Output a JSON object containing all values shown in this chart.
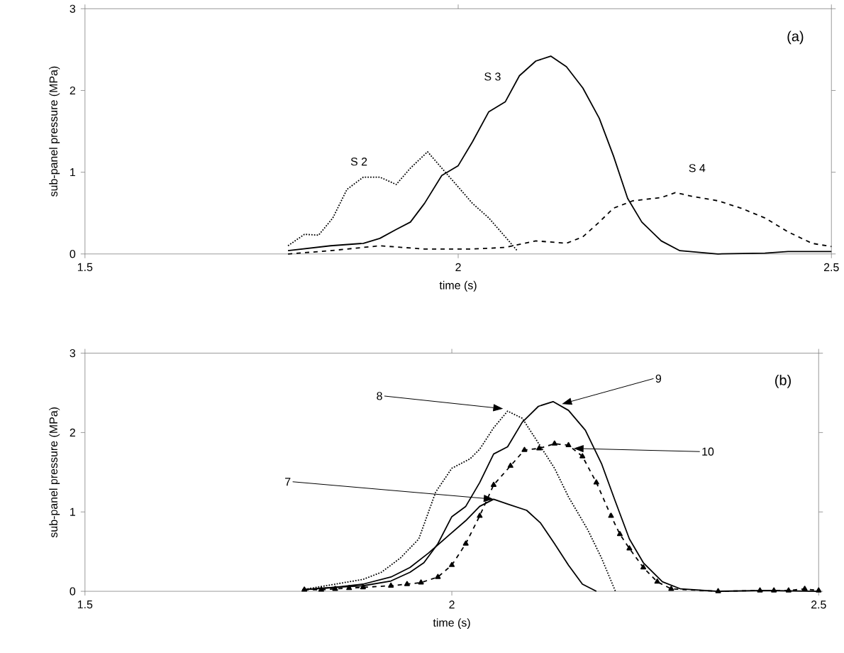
{
  "chart_data": [
    {
      "type": "line",
      "xlabel": "time (s)",
      "ylabel": "sub-panel pressure (MPa)",
      "xlim": [
        1.5,
        2.5
      ],
      "ylim": [
        0,
        3
      ],
      "xticks": [
        {
          "value": 1.5,
          "label": "1.5"
        },
        {
          "value": 2,
          "label": "2"
        },
        {
          "value": 2.5,
          "label": "2.5"
        }
      ],
      "yticks": [
        0,
        1,
        2,
        3
      ],
      "grid": false,
      "annotations": [
        "(a)"
      ],
      "series": [
        {
          "name": "S 2",
          "color": "#000000",
          "line_style": "dotted",
          "x": [
            1.772,
            1.794,
            1.813,
            1.832,
            1.851,
            1.873,
            1.895,
            1.917,
            1.936,
            1.959,
            1.978,
            2.0,
            2.019,
            2.041,
            2.063,
            2.079
          ],
          "values": [
            0.1,
            0.24,
            0.23,
            0.44,
            0.79,
            0.94,
            0.94,
            0.85,
            1.05,
            1.25,
            1.05,
            0.82,
            0.62,
            0.44,
            0.21,
            0.04
          ]
        },
        {
          "name": "S 3",
          "color": "#000000",
          "line_style": "solid",
          "x": [
            1.772,
            1.829,
            1.873,
            1.895,
            1.917,
            1.936,
            1.955,
            1.978,
            2.0,
            2.019,
            2.041,
            2.063,
            2.082,
            2.104,
            2.124,
            2.145,
            2.167,
            2.189,
            2.208,
            2.227,
            2.246,
            2.272,
            2.297,
            2.348,
            2.411,
            2.442,
            2.5
          ],
          "values": [
            0.04,
            0.1,
            0.13,
            0.19,
            0.3,
            0.39,
            0.62,
            0.96,
            1.08,
            1.37,
            1.74,
            1.86,
            2.18,
            2.36,
            2.42,
            2.29,
            2.03,
            1.66,
            1.2,
            0.68,
            0.39,
            0.16,
            0.04,
            0,
            0.01,
            0.03,
            0.03
          ]
        },
        {
          "name": "S 4",
          "color": "#000000",
          "line_style": "dashed",
          "x": [
            1.772,
            1.829,
            1.895,
            1.955,
            2.019,
            2.063,
            2.104,
            2.145,
            2.167,
            2.189,
            2.208,
            2.234,
            2.272,
            2.291,
            2.316,
            2.348,
            2.379,
            2.411,
            2.442,
            2.474,
            2.5
          ],
          "values": [
            0,
            0.04,
            0.1,
            0.06,
            0.06,
            0.08,
            0.16,
            0.13,
            0.21,
            0.39,
            0.56,
            0.65,
            0.69,
            0.75,
            0.7,
            0.65,
            0.56,
            0.44,
            0.27,
            0.13,
            0.09
          ]
        }
      ]
    },
    {
      "type": "line",
      "xlabel": "time (s)",
      "ylabel": "sub-panel pressure (MPa)",
      "xlim": [
        1.5,
        2.5
      ],
      "ylim": [
        0,
        3
      ],
      "xticks": [
        {
          "value": 1.5,
          "label": "1.5"
        },
        {
          "value": 2,
          "label": "2"
        },
        {
          "value": 2.5,
          "label": "2.5"
        }
      ],
      "yticks": [
        0,
        1,
        2,
        3
      ],
      "grid": false,
      "annotations": [
        "(b)",
        {
          "text": "7",
          "x": 2.057,
          "y": 1.16
        },
        {
          "text": "8",
          "x": 2.07,
          "y": 2.3
        },
        {
          "text": "9",
          "x": 2.15,
          "y": 2.36
        },
        {
          "text": "10",
          "x": 2.166,
          "y": 1.8
        }
      ],
      "series": [
        {
          "color": "#000000",
          "line_style": "solid",
          "x": [
            1.796,
            1.841,
            1.879,
            1.917,
            1.943,
            1.968,
            1.994,
            2.019,
            2.038,
            2.057,
            2.076,
            2.102,
            2.121,
            2.14,
            2.159,
            2.178,
            2.197
          ],
          "values": [
            0.02,
            0.05,
            0.09,
            0.18,
            0.3,
            0.48,
            0.69,
            0.89,
            1.07,
            1.16,
            1.1,
            1.02,
            0.86,
            0.6,
            0.33,
            0.09,
            0
          ]
        },
        {
          "color": "#000000",
          "line_style": "dotted",
          "x": [
            1.796,
            1.841,
            1.879,
            1.904,
            1.93,
            1.955,
            1.978,
            2.0,
            2.025,
            2.038,
            2.057,
            2.076,
            2.096,
            2.115,
            2.14,
            2.159,
            2.185,
            2.204,
            2.223
          ],
          "values": [
            0.02,
            0.09,
            0.15,
            0.24,
            0.42,
            0.66,
            1.25,
            1.55,
            1.67,
            1.79,
            2.06,
            2.27,
            2.18,
            1.91,
            1.55,
            1.19,
            0.78,
            0.42,
            0
          ]
        },
        {
          "color": "#000000",
          "line_style": "solid",
          "x": [
            1.796,
            1.841,
            1.879,
            1.917,
            1.943,
            1.962,
            1.981,
            2.0,
            2.019,
            2.038,
            2.057,
            2.076,
            2.096,
            2.118,
            2.138,
            2.159,
            2.182,
            2.204,
            2.223,
            2.242,
            2.261,
            2.287,
            2.312,
            2.363,
            2.427,
            2.5
          ],
          "values": [
            0.02,
            0.05,
            0.07,
            0.13,
            0.24,
            0.36,
            0.6,
            0.94,
            1.07,
            1.37,
            1.73,
            1.82,
            2.13,
            2.33,
            2.39,
            2.28,
            2.03,
            1.61,
            1.13,
            0.66,
            0.36,
            0.12,
            0.03,
            0,
            0.01,
            0
          ]
        },
        {
          "color": "#000000",
          "line_style": "dashed",
          "marker": "triangle",
          "x": [
            1.799,
            1.822,
            1.841,
            1.86,
            1.879,
            1.917,
            1.939,
            1.958,
            1.981,
            2.0,
            2.019,
            2.038,
            2.057,
            2.08,
            2.099,
            2.119,
            2.14,
            2.159,
            2.178,
            2.197,
            2.217,
            2.229,
            2.242,
            2.261,
            2.28,
            2.299,
            2.363,
            2.42,
            2.439,
            2.459,
            2.481,
            2.5
          ],
          "values": [
            0.02,
            0.02,
            0.03,
            0.04,
            0.05,
            0.07,
            0.09,
            0.11,
            0.18,
            0.33,
            0.6,
            0.95,
            1.34,
            1.58,
            1.78,
            1.8,
            1.86,
            1.84,
            1.7,
            1.37,
            0.95,
            0.72,
            0.54,
            0.3,
            0.12,
            0.03,
            0,
            0.01,
            0.01,
            0.01,
            0.03,
            0.01
          ]
        }
      ]
    }
  ]
}
